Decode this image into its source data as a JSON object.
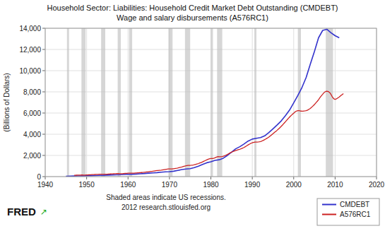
{
  "chart_data": {
    "type": "line",
    "title": "Household Sector: Liabilities: Household Credit Market Debt Outstanding (CMDEBT)\nWage and salary disbursements (A576RC1)",
    "y_label": "(Billions of Dollars)",
    "annotations": [
      "Shaded areas indicate US recessions.\n2012 research.stlouisfed.org",
      "FRED",
      "↗"
    ],
    "xlim": [
      1940,
      2020
    ],
    "ylim": [
      0,
      14000
    ],
    "xticks": [
      1940,
      1950,
      1960,
      1970,
      1980,
      1990,
      2000,
      2010,
      2020
    ],
    "yticks": [
      0,
      {
        "value": 2000,
        "label": "2,000"
      },
      {
        "value": 4000,
        "label": "4,000"
      },
      {
        "value": 6000,
        "label": "6,000"
      },
      {
        "value": 8000,
        "label": "8,000"
      },
      {
        "value": 10000,
        "label": "10,000"
      },
      {
        "value": 12000,
        "label": "12,000"
      },
      {
        "value": 14000,
        "label": "14,000"
      }
    ],
    "grid": true,
    "legend": "lower-right",
    "recessions": {
      "color": "#bbbbbb",
      "spans": [
        [
          1945.25,
          1945.75
        ],
        [
          1948.75,
          1949.75
        ],
        [
          1953.5,
          1954.5
        ],
        [
          1957.5,
          1958.25
        ],
        [
          1960.25,
          1961.0
        ],
        [
          1969.75,
          1970.75
        ],
        [
          1973.75,
          1975.0
        ],
        [
          1980.0,
          1980.5
        ],
        [
          1981.5,
          1982.75
        ],
        [
          1990.5,
          1991.0
        ],
        [
          2001.0,
          2001.75
        ],
        [
          2007.75,
          2009.5
        ]
      ]
    },
    "series": [
      {
        "name": "CMDEBT",
        "color": "#3333cc",
        "x": [
          1945.0,
          1946.0,
          1947.0,
          1948.0,
          1949.0,
          1950.0,
          1951.0,
          1952.0,
          1953.0,
          1954.0,
          1955.0,
          1956.0,
          1957.0,
          1958.0,
          1959.0,
          1960.0,
          1961.0,
          1962.0,
          1963.0,
          1964.0,
          1965.0,
          1966.0,
          1967.0,
          1968.0,
          1969.0,
          1970.0,
          1971.0,
          1972.0,
          1973.0,
          1974.0,
          1975.0,
          1976.0,
          1977.0,
          1978.0,
          1979.0,
          1980.0,
          1981.0,
          1982.0,
          1983.0,
          1984.0,
          1985.0,
          1986.0,
          1987.0,
          1988.0,
          1989.0,
          1990.0,
          1991.0,
          1992.0,
          1993.0,
          1994.0,
          1995.0,
          1996.0,
          1997.0,
          1998.0,
          1999.0,
          2000.0,
          2001.0,
          2002.0,
          2003.0,
          2004.0,
          2005.0,
          2006.0,
          2007.0,
          2008.0,
          2009.0,
          2010.0,
          2011.0
        ],
        "values": [
          35.4,
          45.6,
          55.1,
          64.5,
          68.3,
          79.5,
          90.1,
          100.2,
          112.4,
          120.1,
          140.3,
          158.4,
          170.2,
          178.5,
          198.7,
          213.4,
          222.1,
          242.5,
          265.4,
          291.2,
          322.5,
          349.8,
          374.1,
          412.5,
          447.3,
          463.2,
          510.4,
          584.3,
          664.5,
          712.3,
          750.1,
          845.2,
          989.4,
          1152.3,
          1306.4,
          1400.2,
          1528.3,
          1590.4,
          1738.2,
          2000.5,
          2302.4,
          2624.5,
          2826.3,
          3075.4,
          3352.8,
          3542.3,
          3614.5,
          3683.2,
          3846.4,
          4157.3,
          4513.4,
          4876.5,
          5261.4,
          5756.3,
          6280.5,
          6960.4,
          7652.3,
          8413.4,
          9352.5,
          10600.3,
          11800.4,
          13100.5,
          13800.3,
          13900.4,
          13580.3,
          13300.4,
          13100.2
        ]
      },
      {
        "name": "A576RC1",
        "color": "#cc2222",
        "x": [
          1947.0,
          1947.25,
          1947.5,
          1947.75,
          1948.0,
          1948.25,
          1948.5,
          1948.75,
          1949.0,
          1949.25,
          1949.5,
          1949.75,
          1950.0,
          1950.25,
          1950.5,
          1950.75,
          1951.0,
          1951.25,
          1951.5,
          1951.75,
          1952.0,
          1952.25,
          1952.5,
          1952.75,
          1953.0,
          1953.25,
          1953.5,
          1953.75,
          1954.0,
          1954.25,
          1954.5,
          1954.75,
          1955.0,
          1955.25,
          1955.5,
          1955.75,
          1956.0,
          1956.25,
          1956.5,
          1956.75,
          1957.0,
          1957.25,
          1957.5,
          1957.75,
          1958.0,
          1958.25,
          1958.5,
          1958.75,
          1959.0,
          1959.25,
          1959.5,
          1959.75,
          1960.0,
          1960.25,
          1960.5,
          1960.75,
          1961.0,
          1961.25,
          1961.5,
          1961.75,
          1962.0,
          1962.25,
          1962.5,
          1962.75,
          1963.0,
          1963.25,
          1963.5,
          1963.75,
          1964.0,
          1964.25,
          1964.5,
          1964.75,
          1965.0,
          1965.25,
          1965.5,
          1965.75,
          1966.0,
          1966.25,
          1966.5,
          1966.75,
          1967.0,
          1967.25,
          1967.5,
          1967.75,
          1968.0,
          1968.25,
          1968.5,
          1968.75,
          1969.0,
          1969.25,
          1969.5,
          1969.75,
          1970.0,
          1970.25,
          1970.5,
          1970.75,
          1971.0,
          1971.25,
          1971.5,
          1971.75,
          1972.0,
          1972.25,
          1972.5,
          1972.75,
          1973.0,
          1973.25,
          1973.5,
          1973.75,
          1974.0,
          1974.25,
          1974.5,
          1974.75,
          1975.0,
          1975.25,
          1975.5,
          1975.75,
          1976.0,
          1976.25,
          1976.5,
          1976.75,
          1977.0,
          1977.25,
          1977.5,
          1977.75,
          1978.0,
          1978.25,
          1978.5,
          1978.75,
          1979.0,
          1979.25,
          1979.5,
          1979.75,
          1980.0,
          1980.25,
          1980.5,
          1980.75,
          1981.0,
          1981.25,
          1981.5,
          1981.75,
          1982.0,
          1982.25,
          1982.5,
          1982.75,
          1983.0,
          1983.25,
          1983.5,
          1983.75,
          1984.0,
          1984.25,
          1984.5,
          1984.75,
          1985.0,
          1985.25,
          1985.5,
          1985.75,
          1986.0,
          1986.25,
          1986.5,
          1986.75,
          1987.0,
          1987.25,
          1987.5,
          1987.75,
          1988.0,
          1988.25,
          1988.5,
          1988.75,
          1989.0,
          1989.25,
          1989.5,
          1989.75,
          1990.0,
          1990.25,
          1990.5,
          1990.75,
          1991.0,
          1991.25,
          1991.5,
          1991.75,
          1992.0,
          1992.25,
          1992.5,
          1992.75,
          1993.0,
          1993.25,
          1993.5,
          1993.75,
          1994.0,
          1994.25,
          1994.5,
          1994.75,
          1995.0,
          1995.25,
          1995.5,
          1995.75,
          1996.0,
          1996.25,
          1996.5,
          1996.75,
          1997.0,
          1997.25,
          1997.5,
          1997.75,
          1998.0,
          1998.25,
          1998.5,
          1998.75,
          1999.0,
          1999.25,
          1999.5,
          1999.75,
          2000.0,
          2000.25,
          2000.5,
          2000.75,
          2001.0,
          2001.25,
          2001.5,
          2001.75,
          2002.0,
          2002.25,
          2002.5,
          2002.75,
          2003.0,
          2003.25,
          2003.5,
          2003.75,
          2004.0,
          2004.25,
          2004.5,
          2004.75,
          2005.0,
          2005.25,
          2005.5,
          2005.75,
          2006.0,
          2006.25,
          2006.5,
          2006.75,
          2007.0,
          2007.25,
          2007.5,
          2007.75,
          2008.0,
          2008.25,
          2008.5,
          2008.75,
          2009.0,
          2009.25,
          2009.5,
          2009.75,
          2010.0,
          2010.25,
          2010.5,
          2010.75,
          2011.0,
          2011.25,
          2011.5,
          2011.75,
          2012.0
        ],
        "values": [
          128.5,
          131.2,
          133.8,
          136.4,
          140.2,
          143.8,
          146.5,
          149.2,
          148.5,
          147.8,
          147.2,
          148.5,
          155.2,
          160.4,
          165.8,
          172.3,
          180.5,
          186.2,
          191.4,
          196.8,
          200.5,
          204.8,
          208.4,
          212.1,
          218.4,
          221.8,
          222.4,
          220.8,
          218.5,
          218.8,
          220.4,
          223.8,
          230.5,
          236.8,
          243.4,
          249.8,
          256.5,
          261.8,
          267.4,
          272.8,
          278.5,
          282.8,
          284.4,
          283.8,
          279.5,
          278.8,
          280.4,
          284.8,
          293.5,
          300.8,
          307.4,
          313.8,
          318.5,
          321.8,
          322.4,
          321.8,
          321.5,
          324.8,
          330.4,
          337.8,
          345.5,
          353.8,
          361.4,
          368.8,
          376.5,
          384.8,
          393.4,
          402.8,
          414.5,
          425.8,
          436.4,
          447.8,
          460.5,
          472.8,
          485.4,
          498.8,
          514.5,
          528.8,
          543.4,
          556.8,
          568.5,
          578.8,
          588.4,
          597.8,
          612.5,
          630.8,
          648.4,
          664.8,
          681.5,
          697.8,
          710.4,
          718.8,
          720.5,
          722.8,
          726.4,
          732.8,
          745.5,
          760.8,
          776.4,
          792.8,
          812.5,
          835.8,
          860.4,
          885.8,
          914.5,
          945.8,
          974.4,
          998.8,
          1018.5,
          1038.8,
          1054.4,
          1062.8,
          1062.5,
          1068.8,
          1080.4,
          1096.8,
          1118.5,
          1144.8,
          1172.4,
          1200.8,
          1232.5,
          1267.8,
          1304.4,
          1342.8,
          1387.5,
          1436.8,
          1485.4,
          1532.8,
          1578.5,
          1622.8,
          1660.4,
          1692.8,
          1708.5,
          1710.8,
          1712.4,
          1738.8,
          1778.5,
          1824.8,
          1862.4,
          1882.8,
          1878.5,
          1872.8,
          1876.4,
          1892.8,
          1922.5,
          1958.8,
          1998.4,
          2040.8,
          2092.5,
          2150.8,
          2208.4,
          2262.8,
          2308.5,
          2350.8,
          2390.4,
          2428.8,
          2462.5,
          2492.8,
          2522.4,
          2552.8,
          2582.5,
          2618.8,
          2658.4,
          2702.8,
          2752.5,
          2808.8,
          2868.4,
          2928.8,
          2988.5,
          3048.8,
          3102.4,
          3148.8,
          3188.5,
          3222.8,
          3248.4,
          3258.8,
          3255.5,
          3258.8,
          3268.4,
          3284.8,
          3312.5,
          3348.8,
          3392.4,
          3440.8,
          3492.5,
          3548.8,
          3608.4,
          3668.8,
          3734.5,
          3808.8,
          3888.4,
          3968.8,
          4048.5,
          4128.8,
          4208.4,
          4290.8,
          4374.5,
          4462.8,
          4555.4,
          4648.8,
          4745.5,
          4848.8,
          4958.4,
          5068.8,
          5178.5,
          5288.8,
          5398.4,
          5508.8,
          5618.5,
          5718.8,
          5808.4,
          5898.8,
          5988.5,
          6078.8,
          6148.4,
          6198.8,
          6222.5,
          6218.8,
          6205.4,
          6182.8,
          6168.5,
          6175.8,
          6188.4,
          6202.8,
          6222.5,
          6258.8,
          6308.4,
          6368.8,
          6438.5,
          6518.8,
          6608.4,
          6698.8,
          6802.5,
          6912.8,
          7022.4,
          7132.8,
          7262.5,
          7402.8,
          7535.4,
          7658.8,
          7770.5,
          7890.8,
          7980.4,
          8034.8,
          8050.5,
          8040.8,
          7990.4,
          7900.8,
          7762.5,
          7578.8,
          7428.4,
          7330.8,
          7290.5,
          7325.8,
          7380.4,
          7445.8,
          7518.5,
          7598.8,
          7678.4,
          7755.8,
          7830.5
        ]
      }
    ]
  }
}
